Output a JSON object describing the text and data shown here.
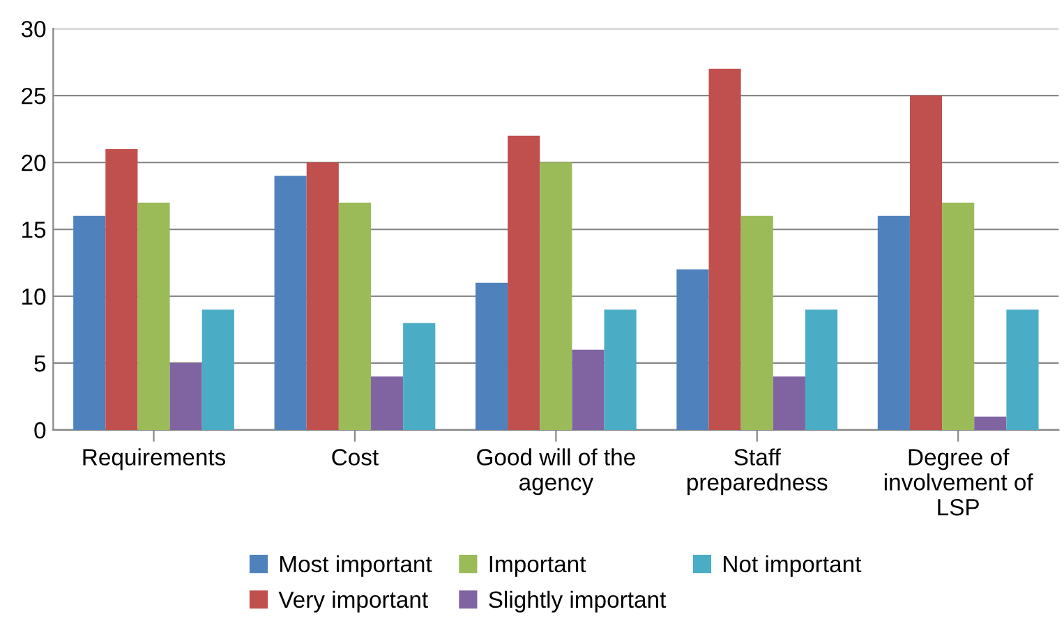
{
  "chart_data": {
    "type": "bar",
    "categories": [
      "Requirements",
      "Cost",
      "Good will of the\nagency",
      "Staff\npreparedness",
      "Degree of\ninvolvement of\nLSP"
    ],
    "series": [
      {
        "name": "Most important",
        "color": "#4f81bd",
        "values": [
          16,
          19,
          11,
          12,
          16
        ]
      },
      {
        "name": "Very important",
        "color": "#c0504d",
        "values": [
          21,
          20,
          22,
          27,
          25
        ]
      },
      {
        "name": "Important",
        "color": "#9bbb59",
        "values": [
          17,
          17,
          20,
          16,
          17
        ]
      },
      {
        "name": "Slightly important",
        "color": "#8064a2",
        "values": [
          5,
          4,
          6,
          4,
          1
        ]
      },
      {
        "name": "Not important",
        "color": "#4bacc6",
        "values": [
          9,
          8,
          9,
          9,
          9
        ]
      }
    ],
    "ylim": [
      0,
      30
    ],
    "yticks": [
      0,
      5,
      10,
      15,
      20,
      25,
      30
    ],
    "grid": "y",
    "legend": "bottom"
  }
}
